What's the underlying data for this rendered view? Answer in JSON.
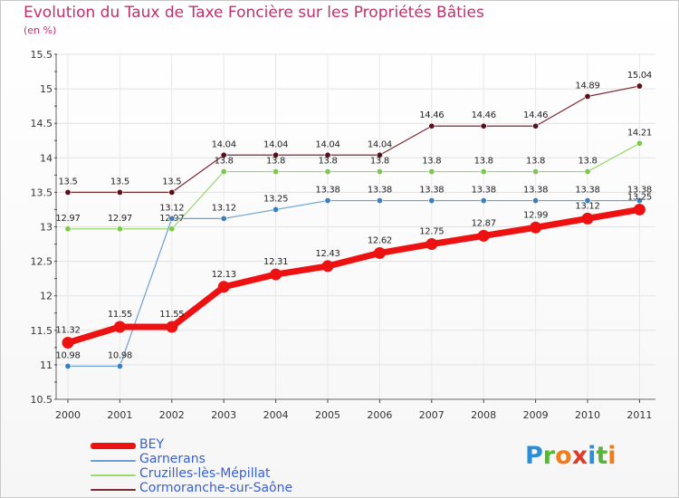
{
  "title": "Evolution du Taux de Taxe Foncière sur les Propriétés Bâties",
  "unit": "(en %)",
  "logo": {
    "letters": [
      {
        "ch": "P",
        "color": "#2a8fd6"
      },
      {
        "ch": "r",
        "color": "#58b43c"
      },
      {
        "ch": "o",
        "color": "#f07c1a"
      },
      {
        "ch": "x",
        "color": "#e23a2a"
      },
      {
        "ch": "i",
        "color": "#2a8fd6"
      },
      {
        "ch": "t",
        "color": "#58b43c"
      },
      {
        "ch": "i",
        "color": "#f07c1a"
      }
    ]
  },
  "chart_data": {
    "type": "line",
    "title": "Evolution du Taux de Taxe Foncière sur les Propriétés Bâties",
    "ylabel": "(en %)",
    "xlabel": "",
    "ylim": [
      10.5,
      15.5
    ],
    "yticks": [
      "10.5",
      "11",
      "11.5",
      "12",
      "12.5",
      "13",
      "13.5",
      "14",
      "14.5",
      "15",
      "15.5"
    ],
    "categories": [
      "2000",
      "2001",
      "2002",
      "2003",
      "2004",
      "2005",
      "2006",
      "2007",
      "2008",
      "2009",
      "2010",
      "2011"
    ],
    "grid": true,
    "legend_position": "bottom",
    "series": [
      {
        "name": "Cormoranche-sur-Saône",
        "color": "#7a2a30",
        "dot_color": "#5a1018",
        "width": 1.2,
        "values": [
          13.5,
          13.5,
          13.5,
          14.04,
          14.04,
          14.04,
          14.04,
          14.46,
          14.46,
          14.46,
          14.89,
          15.04
        ],
        "labels": [
          "13.5",
          "13.5",
          "13.5",
          "14.04",
          "14.04",
          "14.04",
          "14.04",
          "14.46",
          "14.46",
          "14.46",
          "14.89",
          "15.04"
        ]
      },
      {
        "name": "Cruzilles-lès-Mépillat",
        "color": "#9ad870",
        "dot_color": "#7cc84a",
        "width": 1.2,
        "values": [
          12.97,
          12.97,
          12.97,
          13.8,
          13.8,
          13.8,
          13.8,
          13.8,
          13.8,
          13.8,
          13.8,
          14.21
        ],
        "labels": [
          "12.97",
          "12.97",
          "12.97",
          "13.8",
          "13.8",
          "13.8",
          "13.8",
          "13.8",
          "13.8",
          "13.8",
          "13.8",
          "14.21"
        ]
      },
      {
        "name": "Garnerans",
        "color": "#6aa0d0",
        "dot_color": "#3a80c0",
        "width": 1.2,
        "values": [
          10.98,
          10.98,
          13.12,
          13.12,
          13.25,
          13.38,
          13.38,
          13.38,
          13.38,
          13.38,
          13.38,
          13.38
        ],
        "labels": [
          "10.98",
          "10.98",
          "13.12",
          "13.12",
          "13.25",
          "13.38",
          "13.38",
          "13.38",
          "13.38",
          "13.38",
          "13.38",
          "13.38"
        ]
      },
      {
        "name": "BEY",
        "color": "#ee1111",
        "dot_color": "#ee1111",
        "width": 7,
        "values": [
          11.32,
          11.55,
          11.55,
          12.13,
          12.31,
          12.43,
          12.62,
          12.75,
          12.87,
          12.99,
          13.12,
          13.25
        ],
        "labels": [
          "11.32",
          "11.55",
          "11.55",
          "12.13",
          "12.31",
          "12.43",
          "12.62",
          "12.75",
          "12.87",
          "12.99",
          "13.12",
          "13.25"
        ]
      }
    ],
    "legend_order": [
      "BEY",
      "Garnerans",
      "Cruzilles-lès-Mépillat",
      "Cormoranche-sur-Saône"
    ]
  }
}
